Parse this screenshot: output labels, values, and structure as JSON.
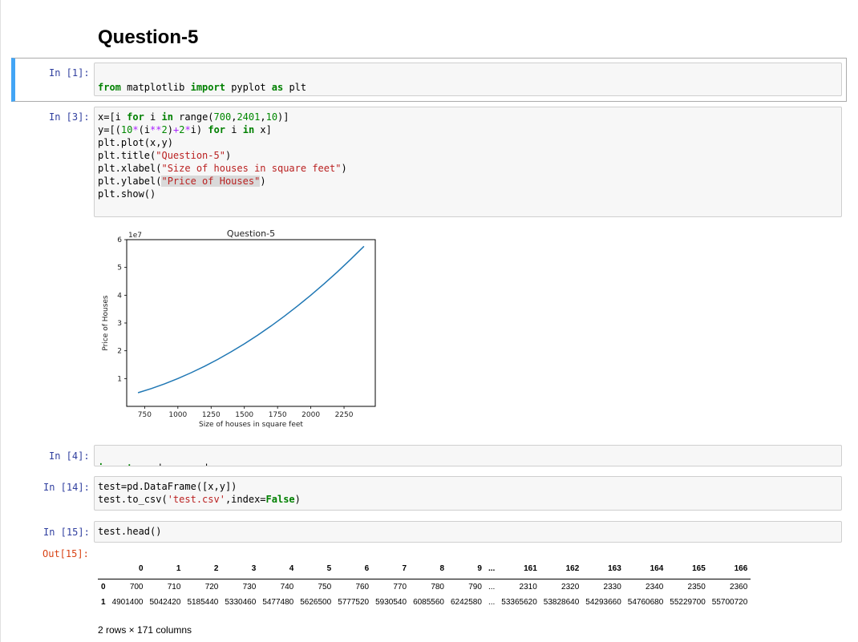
{
  "heading": "Question-5",
  "cells": [
    {
      "prompt": "In [1]:",
      "lines": [
        "from matplotlib import pyplot as plt"
      ]
    },
    {
      "prompt": "In [3]:",
      "lines": [
        "x=[i for i in range(700,2401,10)]",
        "y=[(10*(i**2)+2*i) for i in x]",
        "plt.plot(x,y)",
        "plt.title(\"Question-5\")",
        "plt.xlabel(\"Size of houses in square feet\")",
        "plt.ylabel(\"Price of Houses\")",
        "plt.show()"
      ]
    },
    {
      "prompt": "In [4]:",
      "lines": [
        "import pandas as pd"
      ]
    },
    {
      "prompt": "In [14]:",
      "lines": [
        "test=pd.DataFrame([x,y])",
        "test.to_csv('test.csv',index=False)"
      ]
    },
    {
      "prompt": "In [15]:",
      "lines": [
        "test.head()"
      ]
    }
  ],
  "out_prompt": "Out[15]:",
  "chart_data": {
    "type": "line",
    "title": "Question-5",
    "xlabel": "Size of houses in square feet",
    "ylabel": "Price of Houses",
    "y_offset_label": "1e7",
    "xticks": [
      "750",
      "1000",
      "1250",
      "1500",
      "1750",
      "2000",
      "2250"
    ],
    "yticks": [
      "1",
      "2",
      "3",
      "4",
      "5",
      "6"
    ],
    "xlim": [
      615,
      2485
    ],
    "ylim": [
      0.0,
      6.0
    ],
    "series": [
      {
        "x": [
          700,
          800,
          900,
          1000,
          1100,
          1200,
          1300,
          1400,
          1500,
          1600,
          1700,
          1800,
          1900,
          2000,
          2100,
          2200,
          2300,
          2400
        ],
        "y": [
          4901400,
          6401600,
          8101800,
          10002000,
          12102200,
          14402400,
          16902600,
          19602800,
          22503000,
          25603200,
          28903400,
          32403600,
          36103800,
          40004000,
          44104200,
          48404400,
          52904600,
          57604800
        ],
        "color": "#1f77b4"
      }
    ]
  },
  "dataframe": {
    "columns": [
      "",
      "0",
      "1",
      "2",
      "3",
      "4",
      "5",
      "6",
      "7",
      "8",
      "9",
      "...",
      "161",
      "162",
      "163",
      "164",
      "165",
      "166"
    ],
    "rows": [
      [
        "0",
        "700",
        "710",
        "720",
        "730",
        "740",
        "750",
        "760",
        "770",
        "780",
        "790",
        "...",
        "2310",
        "2320",
        "2330",
        "2340",
        "2350",
        "2360"
      ],
      [
        "1",
        "4901400",
        "5042420",
        "5185440",
        "5330460",
        "5477480",
        "5626500",
        "5777520",
        "5930540",
        "6085560",
        "6242580",
        "...",
        "53365620",
        "53828640",
        "54293660",
        "54760680",
        "55229700",
        "55700720"
      ]
    ],
    "shape": "2 rows × 171 columns"
  }
}
